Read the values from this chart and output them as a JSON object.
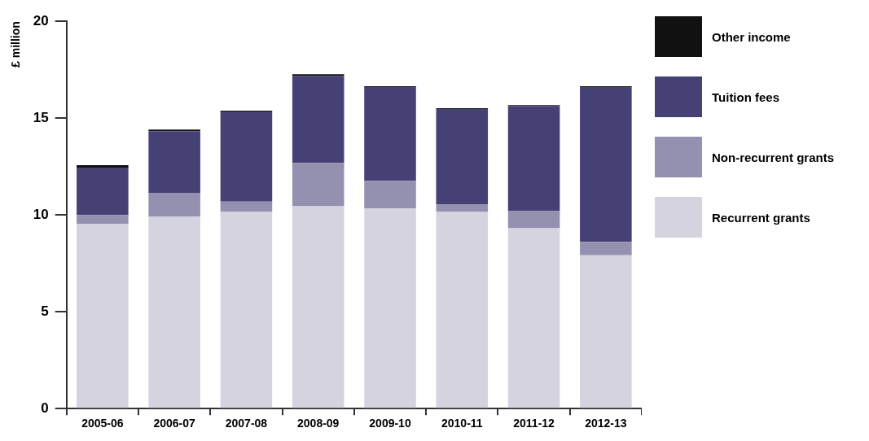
{
  "chart_data": {
    "type": "bar",
    "stacked": true,
    "ylabel": "£ million",
    "categories": [
      "2005-06",
      "2006-07",
      "2007-08",
      "2008-09",
      "2009-10",
      "2010-11",
      "2011-12",
      "2012-13"
    ],
    "ylim": [
      0,
      20
    ],
    "yticks": [
      0,
      5,
      10,
      15,
      20
    ],
    "grid": false,
    "legend": "right",
    "series": [
      {
        "name": "Recurrent grants",
        "color": "#d6d3e0",
        "values": [
          9.55,
          9.92,
          10.16,
          10.45,
          10.33,
          10.16,
          9.31,
          7.92
        ]
      },
      {
        "name": "Non-recurrent grants",
        "color": "#9391af",
        "values": [
          0.45,
          1.22,
          0.53,
          2.24,
          1.43,
          0.37,
          0.89,
          0.69
        ]
      },
      {
        "name": "Tuition fees",
        "color": "#464175",
        "values": [
          2.45,
          3.19,
          4.62,
          4.49,
          4.85,
          4.94,
          5.43,
          7.96
        ]
      },
      {
        "name": "Other income",
        "color": "#111111",
        "values": [
          0.12,
          0.08,
          0.08,
          0.09,
          0.04,
          0.04,
          0.04,
          0.08
        ]
      }
    ]
  }
}
